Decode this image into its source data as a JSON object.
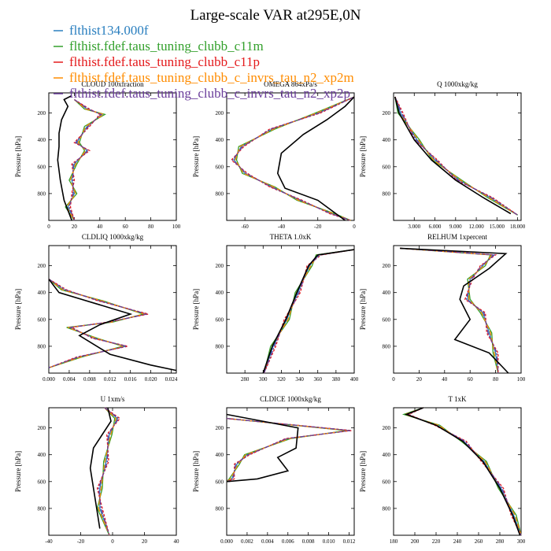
{
  "title": "Large-scale VAR at295E,0N",
  "series": [
    {
      "name": "flthist134.000f",
      "color": "#2a7fbf",
      "dash": ""
    },
    {
      "name": "flthist.fdef.taus_tuning_clubb_c11m",
      "color": "#33a02c",
      "dash": ""
    },
    {
      "name": "flthist.fdef.taus_tuning_clubb_c11p",
      "color": "#e41a1c",
      "dash": "3,2"
    },
    {
      "name": "flthist.fdef.taus_tuning_clubb_c_invrs_tau_n2_xp2m",
      "color": "#ff8c00",
      "dash": "6,3"
    },
    {
      "name": "flthist.fdef.taus_tuning_clubb_c_invrs_tau_n2_xp2p",
      "color": "#6a3d9a",
      "dash": "6,2,2,2"
    }
  ],
  "obs_color": "#000000",
  "chart_data": [
    {
      "type": "line",
      "title": "CLOUD  100xfraction",
      "ylabel": "Pressure [hPa]",
      "xlim": [
        0,
        100
      ],
      "ylim": [
        1000,
        50
      ],
      "xticks": [
        "0",
        "20",
        "40",
        "60",
        "80",
        "100"
      ],
      "xtick_values": [
        0,
        20,
        40,
        60,
        80,
        100
      ],
      "yticks": [
        200,
        400,
        600,
        800
      ],
      "profiles": {
        "obs": [
          [
            18,
            70
          ],
          [
            12,
            100
          ],
          [
            15,
            150
          ],
          [
            10,
            250
          ],
          [
            8,
            350
          ],
          [
            8,
            450
          ],
          [
            7,
            550
          ],
          [
            9,
            700
          ],
          [
            12,
            850
          ],
          [
            18,
            1000
          ]
        ],
        "model": [
          [
            20,
            100
          ],
          [
            30,
            170
          ],
          [
            42,
            210
          ],
          [
            30,
            300
          ],
          [
            22,
            420
          ],
          [
            30,
            480
          ],
          [
            20,
            580
          ],
          [
            18,
            700
          ],
          [
            20,
            800
          ],
          [
            15,
            900
          ],
          [
            20,
            1000
          ]
        ]
      }
    },
    {
      "type": "line",
      "title": "OMEGA  864xPa/s",
      "ylabel": "Pressure [hPa]",
      "xlim": [
        -70,
        0
      ],
      "ylim": [
        1000,
        50
      ],
      "xticks": [
        "-60",
        "-40",
        "-20",
        "0"
      ],
      "xtick_values": [
        -60,
        -40,
        -20,
        0
      ],
      "yticks": [
        200,
        400,
        600,
        800
      ],
      "profiles": {
        "obs": [
          [
            0,
            80
          ],
          [
            -5,
            150
          ],
          [
            -15,
            250
          ],
          [
            -28,
            360
          ],
          [
            -40,
            500
          ],
          [
            -42,
            650
          ],
          [
            -38,
            760
          ],
          [
            -20,
            850
          ],
          [
            -5,
            1000
          ]
        ],
        "model": [
          [
            0,
            80
          ],
          [
            -20,
            200
          ],
          [
            -45,
            320
          ],
          [
            -62,
            450
          ],
          [
            -66,
            550
          ],
          [
            -60,
            650
          ],
          [
            -45,
            750
          ],
          [
            -30,
            850
          ],
          [
            -12,
            950
          ],
          [
            -2,
            1000
          ]
        ]
      }
    },
    {
      "type": "line",
      "title": "Q  1000xkg/kg",
      "ylabel": "Pressure [hPa]",
      "xlim": [
        0,
        18.5
      ],
      "ylim": [
        1000,
        50
      ],
      "xticks": [
        "3.000",
        "6.000",
        "9.000",
        "12.000",
        "15.000",
        "18.000"
      ],
      "xtick_values": [
        3,
        6,
        9,
        12,
        15,
        18
      ],
      "yticks": [
        200,
        400,
        600,
        800
      ],
      "profiles": {
        "obs": [
          [
            0.2,
            80
          ],
          [
            0.8,
            200
          ],
          [
            3,
            400
          ],
          [
            5.5,
            550
          ],
          [
            9,
            700
          ],
          [
            13,
            830
          ],
          [
            17,
            950
          ]
        ],
        "model": [
          [
            0.2,
            80
          ],
          [
            1,
            200
          ],
          [
            3.4,
            400
          ],
          [
            6,
            550
          ],
          [
            9.5,
            700
          ],
          [
            14,
            830
          ],
          [
            18,
            960
          ]
        ]
      }
    },
    {
      "type": "line",
      "title": "CLDLIQ  1000xkg/kg",
      "ylabel": "Pressure [hPa]",
      "xlim": [
        0,
        0.025
      ],
      "ylim": [
        1000,
        50
      ],
      "xticks": [
        "0.000",
        "0.004",
        "0.008",
        "0.012",
        "0.016",
        "0.020",
        "0.024"
      ],
      "xtick_values": [
        0,
        0.004,
        0.008,
        0.012,
        0.016,
        0.02,
        0.024
      ],
      "yticks": [
        200,
        400,
        600,
        800
      ],
      "profiles": {
        "obs": [
          [
            0,
            300
          ],
          [
            0.002,
            400
          ],
          [
            0.009,
            480
          ],
          [
            0.016,
            560
          ],
          [
            0.01,
            640
          ],
          [
            0.006,
            720
          ],
          [
            0.012,
            860
          ],
          [
            0.02,
            940
          ],
          [
            0.025,
            980
          ]
        ],
        "model": [
          [
            0,
            300
          ],
          [
            0.003,
            380
          ],
          [
            0.01,
            460
          ],
          [
            0.019,
            560
          ],
          [
            0.012,
            620
          ],
          [
            0.004,
            660
          ],
          [
            0.009,
            740
          ],
          [
            0.015,
            800
          ],
          [
            0.006,
            880
          ],
          [
            0,
            960
          ]
        ]
      }
    },
    {
      "type": "line",
      "title": "THETA  1.0xK",
      "ylabel": "Pressure [hPa]",
      "xlim": [
        260,
        400
      ],
      "ylim": [
        1000,
        50
      ],
      "xticks": [
        "280",
        "300",
        "320",
        "340",
        "360",
        "380",
        "400"
      ],
      "xtick_values": [
        280,
        300,
        320,
        340,
        360,
        380,
        400
      ],
      "yticks": [
        200,
        400,
        600,
        800
      ],
      "profiles": {
        "obs": [
          [
            300,
            1000
          ],
          [
            310,
            800
          ],
          [
            325,
            600
          ],
          [
            337,
            400
          ],
          [
            350,
            200
          ],
          [
            360,
            120
          ],
          [
            400,
            80
          ]
        ],
        "model": [
          [
            301,
            1000
          ],
          [
            311,
            800
          ],
          [
            326,
            600
          ],
          [
            338,
            400
          ],
          [
            351,
            200
          ],
          [
            361,
            120
          ],
          [
            400,
            80
          ]
        ]
      }
    },
    {
      "type": "line",
      "title": "RELHUM  1xpercent",
      "ylabel": "Pressure [hPa]",
      "xlim": [
        0,
        100
      ],
      "ylim": [
        1000,
        50
      ],
      "xticks": [
        "0",
        "20",
        "40",
        "60",
        "80",
        "100"
      ],
      "xtick_values": [
        0,
        20,
        40,
        60,
        80,
        100
      ],
      "yticks": [
        200,
        400,
        600,
        800
      ],
      "profiles": {
        "obs": [
          [
            5,
            70
          ],
          [
            88,
            110
          ],
          [
            75,
            220
          ],
          [
            55,
            350
          ],
          [
            52,
            450
          ],
          [
            60,
            600
          ],
          [
            48,
            750
          ],
          [
            75,
            850
          ],
          [
            90,
            1000
          ]
        ],
        "model": [
          [
            5,
            70
          ],
          [
            78,
            120
          ],
          [
            70,
            200
          ],
          [
            60,
            300
          ],
          [
            58,
            450
          ],
          [
            70,
            550
          ],
          [
            75,
            700
          ],
          [
            80,
            850
          ],
          [
            82,
            1000
          ]
        ]
      }
    },
    {
      "type": "line",
      "title": "U  1xm/s",
      "ylabel": "Pressure [hPa]",
      "xlim": [
        -40,
        40
      ],
      "ylim": [
        1000,
        50
      ],
      "xticks": [
        "-40",
        "-20",
        "0",
        "20",
        "40"
      ],
      "xtick_values": [
        -40,
        -20,
        0,
        20,
        40
      ],
      "yticks": [
        200,
        400,
        600,
        800
      ],
      "profiles": {
        "obs": [
          [
            -3,
            50
          ],
          [
            -1,
            150
          ],
          [
            -12,
            350
          ],
          [
            -14,
            500
          ],
          [
            -10,
            800
          ],
          [
            -8,
            950
          ]
        ],
        "model": [
          [
            -5,
            50
          ],
          [
            3,
            130
          ],
          [
            -2,
            250
          ],
          [
            -4,
            450
          ],
          [
            -8,
            650
          ],
          [
            -8,
            800
          ],
          [
            -2,
            1000
          ]
        ]
      }
    },
    {
      "type": "line",
      "title": "CLDICE  1000xkg/kg",
      "ylabel": "Pressure [hPa]",
      "xlim": [
        0,
        0.0125
      ],
      "ylim": [
        1000,
        50
      ],
      "xticks": [
        "0.000",
        "0.002",
        "0.004",
        "0.006",
        "0.008",
        "0.010",
        "0.012"
      ],
      "xtick_values": [
        0,
        0.002,
        0.004,
        0.006,
        0.008,
        0.01,
        0.012
      ],
      "yticks": [
        200,
        400,
        600,
        800
      ],
      "profiles": {
        "obs": [
          [
            0,
            100
          ],
          [
            0.007,
            200
          ],
          [
            0.0068,
            350
          ],
          [
            0.005,
            420
          ],
          [
            0.006,
            520
          ],
          [
            0.003,
            580
          ],
          [
            0,
            600
          ]
        ],
        "model": [
          [
            0,
            130
          ],
          [
            0.012,
            220
          ],
          [
            0.006,
            280
          ],
          [
            0.002,
            400
          ],
          [
            0.001,
            470
          ],
          [
            0.0005,
            580
          ],
          [
            0,
            600
          ]
        ]
      }
    },
    {
      "type": "line",
      "title": "T  1xK",
      "ylabel": "Pressure [hPa]",
      "xlim": [
        180,
        300
      ],
      "ylim": [
        1000,
        50
      ],
      "xticks": [
        "180",
        "200",
        "220",
        "240",
        "260",
        "280",
        "300"
      ],
      "xtick_values": [
        180,
        200,
        220,
        240,
        260,
        280,
        300
      ],
      "yticks": [
        200,
        400,
        600,
        800
      ],
      "profiles": {
        "obs": [
          [
            208,
            50
          ],
          [
            192,
            100
          ],
          [
            220,
            180
          ],
          [
            245,
            300
          ],
          [
            264,
            450
          ],
          [
            280,
            650
          ],
          [
            292,
            850
          ],
          [
            299,
            1000
          ]
        ],
        "model": [
          [
            208,
            50
          ],
          [
            192,
            100
          ],
          [
            221,
            180
          ],
          [
            246,
            300
          ],
          [
            265,
            450
          ],
          [
            281,
            650
          ],
          [
            293,
            850
          ],
          [
            300,
            1000
          ]
        ]
      }
    }
  ]
}
